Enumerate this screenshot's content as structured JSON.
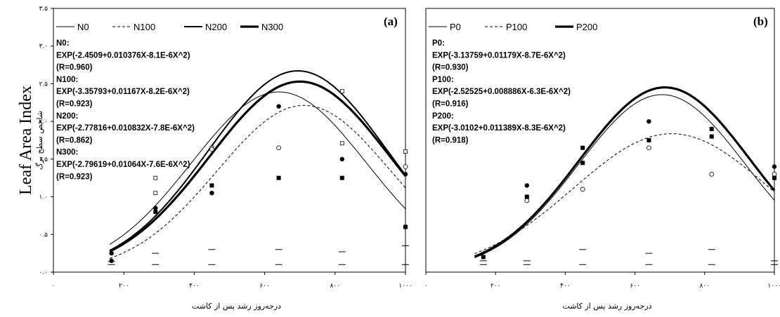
{
  "figure": {
    "y_title": "Leaf Area Index",
    "y_subtitle": "شاخص سطح برگ"
  },
  "chart_data": [
    {
      "type": "line",
      "panel_label": "(a)",
      "xlabel": "درجه‌روز رشد پس از کاشت",
      "xlim": [
        0,
        1000
      ],
      "ylim": [
        0,
        3.5
      ],
      "x_ticks": [
        0,
        200,
        400,
        600,
        800,
        1000
      ],
      "x_tick_labels": [
        "۰",
        "۲۰۰",
        "۴۰۰",
        "۶۰۰",
        "۸۰۰",
        "۱۰۰۰"
      ],
      "y_ticks": [
        0,
        0.5,
        1.0,
        1.5,
        2.0,
        2.5,
        3.0,
        3.5
      ],
      "y_tick_labels": [
        "۰.۰",
        "۰.۵",
        "۱.۰",
        "۱.۵",
        "۲.۰",
        "۲.۵",
        "۳.۰",
        "۳.۵"
      ],
      "legend_position": "top",
      "series": [
        {
          "name": "N0",
          "line": "thin-solid",
          "curve_x_start": 160,
          "equation": "N0:",
          "formula": "EXP(-2.4509+0.010376X-8.1E-6X^2)",
          "r": "(R=0.960)",
          "observed": [
            {
              "x": 165,
              "y": 0.1,
              "marker": "dash"
            },
            {
              "x": 290,
              "y": 0.1,
              "marker": "dash"
            },
            {
              "x": 450,
              "y": 0.1,
              "marker": "dash"
            },
            {
              "x": 640,
              "y": 0.1,
              "marker": "dash"
            },
            {
              "x": 820,
              "y": 0.1,
              "marker": "dash"
            },
            {
              "x": 1000,
              "y": 0.1,
              "marker": "dash"
            }
          ]
        },
        {
          "name": "N100",
          "line": "dashed",
          "curve_x_start": 160,
          "equation": "N100:",
          "formula": "EXP(-3.35793+0.01167X-8.2E-6X^2)",
          "r": "(R=0.923)",
          "observed": [
            {
              "x": 165,
              "y": 0.14,
              "marker": "dash"
            },
            {
              "x": 290,
              "y": 0.25,
              "marker": "dash"
            },
            {
              "x": 450,
              "y": 0.3,
              "marker": "dash"
            },
            {
              "x": 640,
              "y": 0.3,
              "marker": "dash"
            },
            {
              "x": 820,
              "y": 0.27,
              "marker": "dash"
            },
            {
              "x": 1000,
              "y": 0.35,
              "marker": "dash"
            }
          ]
        },
        {
          "name": "N200",
          "line": "medium-solid",
          "curve_x_start": 160,
          "equation": "N200:",
          "formula": "EXP(-2.77816+0.010832X-7.8E-6X^2)",
          "r": "(R=0.862)",
          "observed": [
            {
              "x": 290,
              "y": 1.05,
              "marker": "open-square"
            },
            {
              "x": 290,
              "y": 1.25,
              "marker": "open-square"
            },
            {
              "x": 450,
              "y": 1.65,
              "marker": "open-square"
            },
            {
              "x": 450,
              "y": 1.63,
              "marker": "open-circle"
            },
            {
              "x": 640,
              "y": 1.65,
              "marker": "open-circle"
            },
            {
              "x": 820,
              "y": 1.71,
              "marker": "open-square"
            },
            {
              "x": 820,
              "y": 2.4,
              "marker": "open-square"
            },
            {
              "x": 1000,
              "y": 1.6,
              "marker": "open-square"
            },
            {
              "x": 1000,
              "y": 1.4,
              "marker": "open-circle"
            }
          ]
        },
        {
          "name": "N300",
          "line": "thick-solid",
          "curve_x_start": 160,
          "equation": "N300:",
          "formula": "EXP(-2.79619+0.01064X-7.6E-6X^2)",
          "r": "(R=0.923)",
          "observed": [
            {
              "x": 165,
              "y": 0.25,
              "marker": "filled-circle"
            },
            {
              "x": 165,
              "y": 0.15,
              "marker": "filled-circle"
            },
            {
              "x": 290,
              "y": 0.85,
              "marker": "filled-circle"
            },
            {
              "x": 290,
              "y": 0.8,
              "marker": "filled-square"
            },
            {
              "x": 450,
              "y": 1.15,
              "marker": "filled-square"
            },
            {
              "x": 450,
              "y": 1.05,
              "marker": "filled-circle"
            },
            {
              "x": 640,
              "y": 2.2,
              "marker": "filled-circle"
            },
            {
              "x": 640,
              "y": 1.25,
              "marker": "filled-square"
            },
            {
              "x": 820,
              "y": 1.5,
              "marker": "filled-circle"
            },
            {
              "x": 820,
              "y": 1.25,
              "marker": "filled-square"
            },
            {
              "x": 1000,
              "y": 0.6,
              "marker": "filled-square"
            },
            {
              "x": 1000,
              "y": 1.3,
              "marker": "filled-circle"
            }
          ]
        }
      ]
    },
    {
      "type": "line",
      "panel_label": "(b)",
      "xlabel": "درجه‌روز رشد پس از کاشت",
      "xlim": [
        0,
        1000
      ],
      "ylim": [
        0,
        3.5
      ],
      "x_ticks": [
        0,
        200,
        400,
        600,
        800,
        1000
      ],
      "x_tick_labels": [
        "۰",
        "۲۰۰",
        "۴۰۰",
        "۶۰۰",
        "۸۰۰",
        "۱۰۰۰"
      ],
      "legend_position": "top",
      "series": [
        {
          "name": "P0",
          "line": "thin-solid",
          "curve_x_start": 140,
          "equation": "P0:",
          "formula": "EXP(-3.13759+0.01179X-8.7E-6X^2)",
          "r": "(R=0.930)",
          "observed": [
            {
              "x": 165,
              "y": 0.1,
              "marker": "dash"
            },
            {
              "x": 290,
              "y": 0.1,
              "marker": "dash"
            },
            {
              "x": 450,
              "y": 0.1,
              "marker": "dash"
            },
            {
              "x": 640,
              "y": 0.1,
              "marker": "dash"
            },
            {
              "x": 820,
              "y": 0.1,
              "marker": "dash"
            },
            {
              "x": 1000,
              "y": 0.1,
              "marker": "dash"
            }
          ]
        },
        {
          "name": "P100",
          "line": "dashed",
          "curve_x_start": 140,
          "equation": "P100:",
          "formula": "EXP(-2.52525+0.008886X-6.3E-6X^2)",
          "r": "(R=0.916)",
          "observed": [
            {
              "x": 165,
              "y": 0.15,
              "marker": "dash"
            },
            {
              "x": 290,
              "y": 0.15,
              "marker": "dash"
            },
            {
              "x": 450,
              "y": 0.3,
              "marker": "dash"
            },
            {
              "x": 640,
              "y": 0.25,
              "marker": "dash"
            },
            {
              "x": 820,
              "y": 0.3,
              "marker": "dash"
            },
            {
              "x": 1000,
              "y": 0.15,
              "marker": "dash"
            },
            {
              "x": 290,
              "y": 0.95,
              "marker": "open-circle"
            },
            {
              "x": 450,
              "y": 1.1,
              "marker": "open-circle"
            },
            {
              "x": 640,
              "y": 1.65,
              "marker": "open-circle"
            },
            {
              "x": 820,
              "y": 1.3,
              "marker": "open-circle"
            },
            {
              "x": 1000,
              "y": 1.3,
              "marker": "open-circle"
            }
          ]
        },
        {
          "name": "P200",
          "line": "thick-solid",
          "curve_x_start": 140,
          "equation": "P200:",
          "formula": "EXP(-3.0102+0.011389X-8.3E-6X^2)",
          "r": "(R=0.918)",
          "observed": [
            {
              "x": 165,
              "y": 0.2,
              "marker": "filled-square"
            },
            {
              "x": 290,
              "y": 1.15,
              "marker": "filled-circle"
            },
            {
              "x": 290,
              "y": 1.0,
              "marker": "filled-square"
            },
            {
              "x": 450,
              "y": 1.65,
              "marker": "filled-square"
            },
            {
              "x": 450,
              "y": 1.45,
              "marker": "filled-square"
            },
            {
              "x": 640,
              "y": 2.0,
              "marker": "filled-circle"
            },
            {
              "x": 640,
              "y": 1.75,
              "marker": "filled-square"
            },
            {
              "x": 820,
              "y": 1.9,
              "marker": "filled-square"
            },
            {
              "x": 820,
              "y": 1.8,
              "marker": "filled-square"
            },
            {
              "x": 1000,
              "y": 1.4,
              "marker": "filled-circle"
            },
            {
              "x": 1000,
              "y": 1.25,
              "marker": "filled-square"
            }
          ]
        }
      ]
    }
  ]
}
